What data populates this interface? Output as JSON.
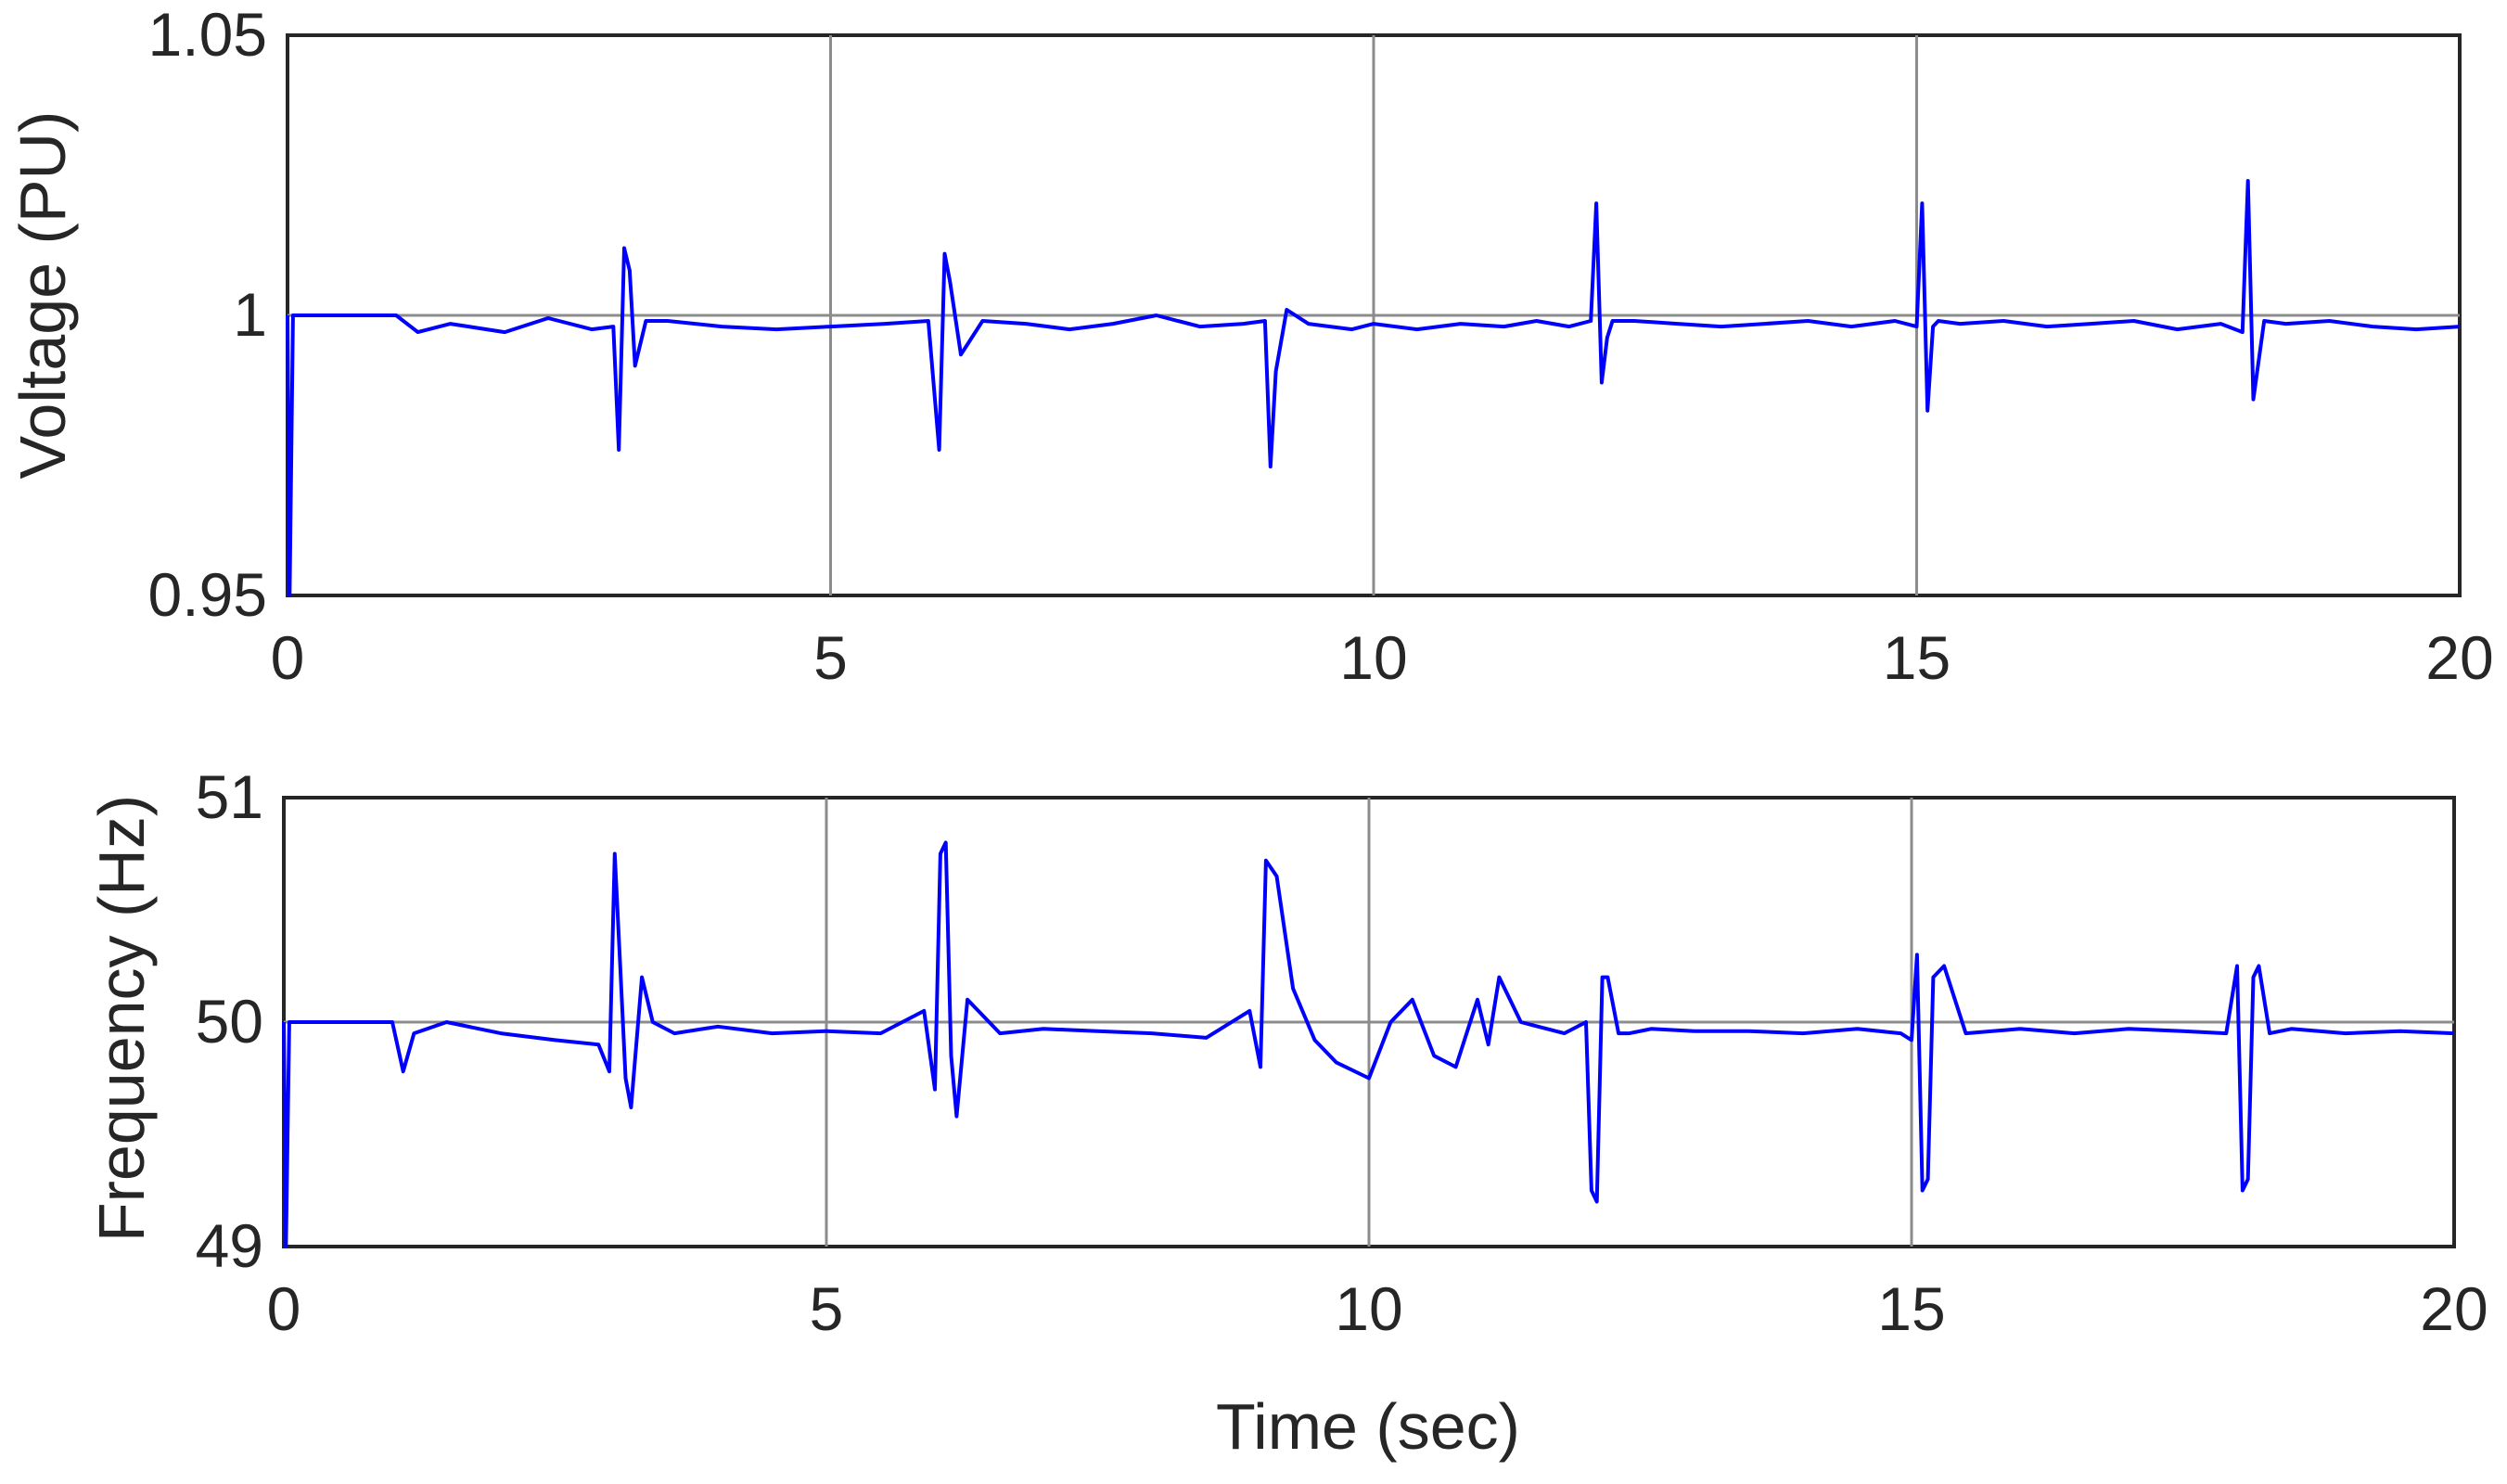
{
  "colors": {
    "line": "#0000ff",
    "grid": "#8c8c8c",
    "axes": "#262626",
    "background": "#ffffff"
  },
  "chart_data": [
    {
      "type": "line",
      "title": "",
      "xlabel": "",
      "ylabel": "Voltage (PU)",
      "xlim": [
        0,
        20
      ],
      "ylim": [
        0.95,
        1.05
      ],
      "xticks": [
        "0",
        "5",
        "10",
        "15",
        "20"
      ],
      "yticks": [
        "0.95",
        "1",
        "1.05"
      ],
      "grid": true,
      "series": [
        {
          "x": [
            0,
            0.02,
            0.05,
            1.0,
            1.2,
            1.5,
            2.0,
            2.4,
            2.8,
            3.0,
            3.05,
            3.1,
            3.15,
            3.2,
            3.3,
            3.5,
            4.0,
            4.5,
            5.0,
            5.5,
            5.9,
            6.0,
            6.05,
            6.1,
            6.2,
            6.4,
            6.8,
            7.2,
            7.6,
            8.0,
            8.4,
            8.8,
            9.0,
            9.05,
            9.1,
            9.2,
            9.4,
            9.8,
            10.0,
            10.4,
            10.8,
            11.2,
            11.5,
            11.8,
            12.0,
            12.05,
            12.1,
            12.15,
            12.2,
            12.4,
            12.8,
            13.2,
            13.6,
            14.0,
            14.4,
            14.8,
            15.0,
            15.05,
            15.1,
            15.15,
            15.2,
            15.4,
            15.8,
            16.2,
            16.6,
            17.0,
            17.4,
            17.8,
            18.0,
            18.05,
            18.1,
            18.2,
            18.4,
            18.8,
            19.2,
            19.6,
            20.0
          ],
          "y": [
            1.0,
            0.95,
            1.0,
            1.0,
            0.997,
            0.9985,
            0.997,
            0.9995,
            0.9975,
            0.998,
            0.976,
            1.012,
            1.008,
            0.991,
            0.999,
            0.999,
            0.998,
            0.9975,
            0.998,
            0.9985,
            0.999,
            0.976,
            1.011,
            1.006,
            0.993,
            0.999,
            0.9985,
            0.9975,
            0.9985,
            1.0,
            0.998,
            0.9985,
            0.999,
            0.973,
            0.99,
            1.001,
            0.9985,
            0.9975,
            0.9985,
            0.9975,
            0.9985,
            0.998,
            0.999,
            0.998,
            0.999,
            1.02,
            0.988,
            0.996,
            0.999,
            0.999,
            0.9985,
            0.998,
            0.9985,
            0.999,
            0.998,
            0.999,
            0.998,
            1.02,
            0.983,
            0.998,
            0.999,
            0.9985,
            0.999,
            0.998,
            0.9985,
            0.999,
            0.9975,
            0.9985,
            0.997,
            1.024,
            0.985,
            0.999,
            0.9985,
            0.999,
            0.998,
            0.9975,
            0.998
          ]
        }
      ]
    },
    {
      "type": "line",
      "title": "",
      "xlabel": "Time (sec)",
      "ylabel": "Frequency (Hz)",
      "xlim": [
        0,
        20
      ],
      "ylim": [
        49,
        51
      ],
      "xticks": [
        "0",
        "5",
        "10",
        "15",
        "20"
      ],
      "yticks": [
        "49",
        "50",
        "51"
      ],
      "grid": true,
      "series": [
        {
          "x": [
            0,
            0.02,
            0.05,
            1.0,
            1.1,
            1.2,
            1.5,
            2.0,
            2.5,
            2.9,
            3.0,
            3.05,
            3.1,
            3.15,
            3.2,
            3.3,
            3.4,
            3.6,
            4.0,
            4.5,
            5.0,
            5.5,
            5.9,
            6.0,
            6.05,
            6.1,
            6.15,
            6.2,
            6.3,
            6.4,
            6.6,
            7.0,
            7.5,
            8.0,
            8.5,
            8.9,
            9.0,
            9.05,
            9.15,
            9.3,
            9.5,
            9.7,
            10.0,
            10.2,
            10.4,
            10.6,
            10.8,
            11.0,
            11.1,
            11.2,
            11.4,
            11.8,
            12.0,
            12.05,
            12.1,
            12.15,
            12.2,
            12.3,
            12.4,
            12.6,
            13.0,
            13.5,
            14.0,
            14.5,
            14.9,
            15.0,
            15.05,
            15.1,
            15.15,
            15.2,
            15.3,
            15.5,
            16.0,
            16.5,
            17.0,
            17.5,
            17.9,
            18.0,
            18.05,
            18.1,
            18.15,
            18.2,
            18.3,
            18.5,
            19.0,
            19.5,
            20.0
          ],
          "y": [
            50.0,
            49.0,
            50.0,
            50.0,
            49.78,
            49.95,
            50.0,
            49.95,
            49.92,
            49.9,
            49.78,
            50.75,
            50.25,
            49.75,
            49.62,
            50.2,
            50.0,
            49.95,
            49.98,
            49.95,
            49.96,
            49.95,
            50.05,
            49.7,
            50.75,
            50.8,
            49.85,
            49.58,
            50.1,
            50.05,
            49.95,
            49.97,
            49.96,
            49.95,
            49.93,
            50.05,
            49.8,
            50.72,
            50.65,
            50.15,
            49.92,
            49.82,
            49.75,
            50.0,
            50.1,
            49.85,
            49.8,
            50.1,
            49.9,
            50.2,
            50.0,
            49.95,
            50.0,
            49.25,
            49.2,
            50.2,
            50.2,
            49.95,
            49.95,
            49.97,
            49.96,
            49.96,
            49.95,
            49.97,
            49.95,
            49.92,
            50.3,
            49.25,
            49.3,
            50.2,
            50.25,
            49.95,
            49.97,
            49.95,
            49.97,
            49.96,
            49.95,
            50.25,
            49.25,
            49.3,
            50.2,
            50.25,
            49.95,
            49.97,
            49.95,
            49.96,
            49.95
          ]
        }
      ]
    }
  ]
}
